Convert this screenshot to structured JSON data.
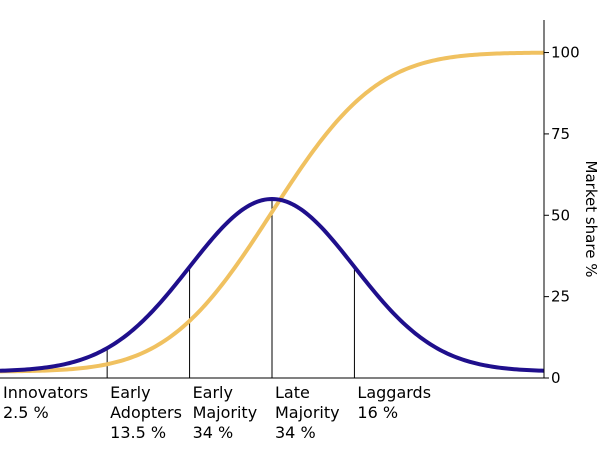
{
  "chart_data": {
    "type": "line",
    "ylabel": "Market share %",
    "yticks": [
      0,
      25,
      50,
      75,
      100
    ],
    "ylim": [
      0,
      110
    ],
    "y_axis_side": "right",
    "x_range": [
      -3.3,
      3.3
    ],
    "segment_boundaries": [
      -2,
      -1,
      0,
      1
    ],
    "series": [
      {
        "key": "adoption",
        "color": "#1f0f8c",
        "peak": 55,
        "base": 2
      },
      {
        "key": "cumulative",
        "color": "#f0c160",
        "start": 2,
        "end": 100
      }
    ],
    "segments": [
      {
        "lines": [
          "Innovators",
          "2.5 %"
        ]
      },
      {
        "lines": [
          "Early",
          "Adopters",
          "13.5 %"
        ]
      },
      {
        "lines": [
          "Early",
          "Majority",
          "34 %"
        ]
      },
      {
        "lines": [
          "Late",
          "Majority",
          "34 %"
        ]
      },
      {
        "lines": [
          "Laggards",
          "16 %"
        ]
      }
    ]
  }
}
